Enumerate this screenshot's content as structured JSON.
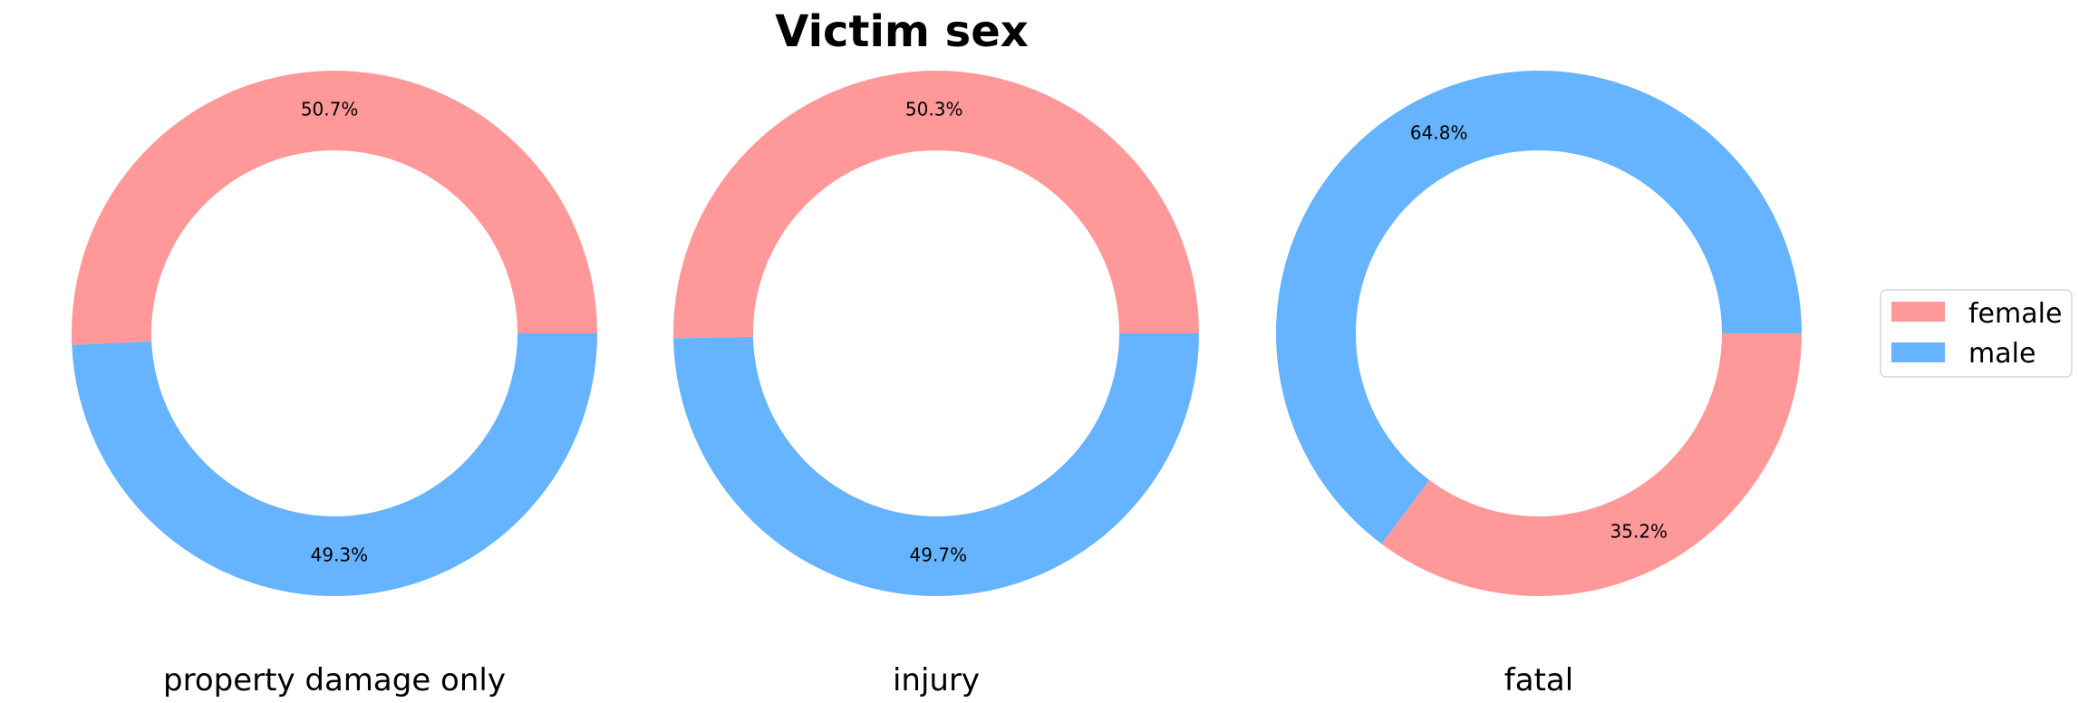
{
  "colors": {
    "female": "#ff9999",
    "male": "#66b3ff"
  },
  "chart_data": {
    "type": "pie",
    "variant": "donut",
    "title": "Victim sex",
    "legend": {
      "placement": "right",
      "entries": [
        {
          "label": "female",
          "color": "#ff9999"
        },
        {
          "label": "male",
          "color": "#66b3ff"
        }
      ]
    },
    "charts": [
      {
        "subtitle": "property damage only",
        "slices": [
          {
            "label": "female",
            "value": 50.7,
            "text": "50.7%"
          },
          {
            "label": "male",
            "value": 49.3,
            "text": "49.3%"
          }
        ]
      },
      {
        "subtitle": "injury",
        "slices": [
          {
            "label": "female",
            "value": 50.3,
            "text": "50.3%"
          },
          {
            "label": "male",
            "value": 49.7,
            "text": "49.7%"
          }
        ]
      },
      {
        "subtitle": "fatal",
        "slices": [
          {
            "label": "male",
            "value": 64.8,
            "text": "64.8%"
          },
          {
            "label": "female",
            "value": 35.2,
            "text": "35.2%"
          }
        ]
      }
    ]
  }
}
